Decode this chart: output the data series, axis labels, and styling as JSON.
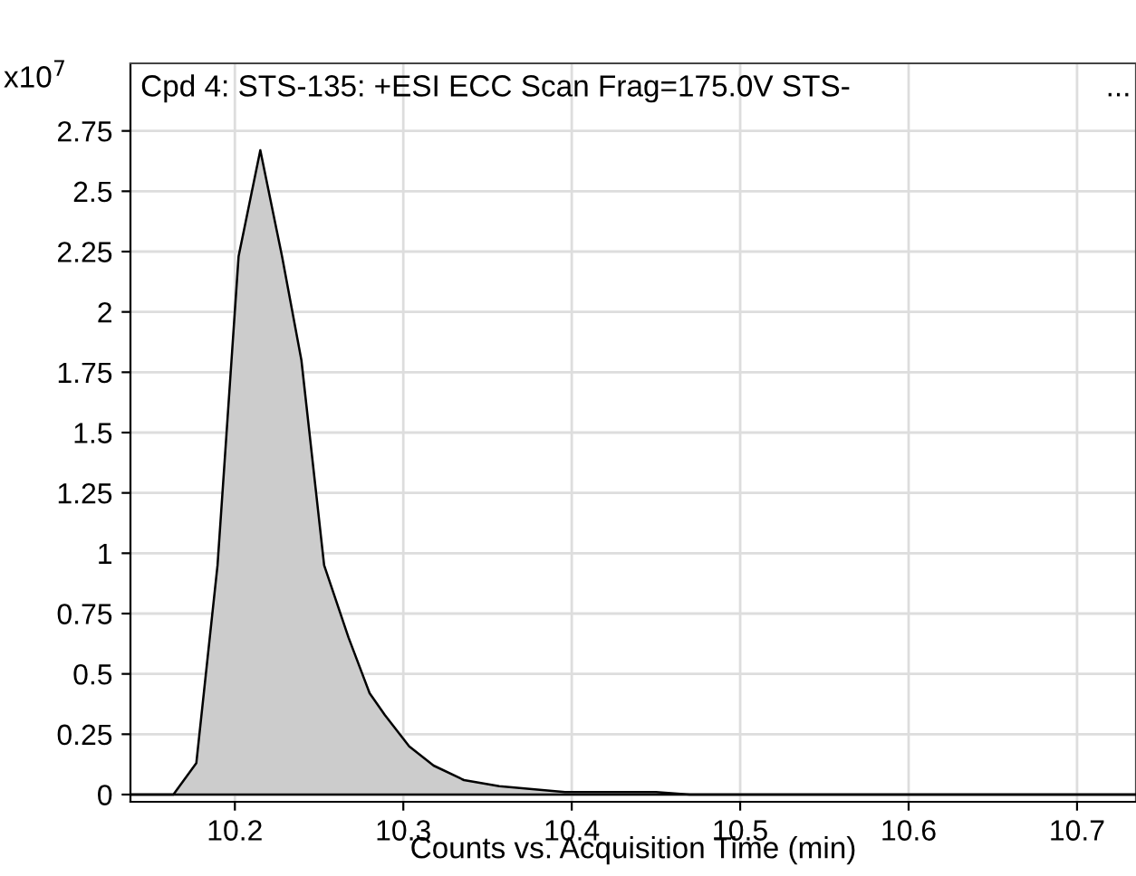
{
  "chart_data": {
    "type": "area",
    "title": "Cpd 4: STS-135: +ESI ECC Scan Frag=175.0V STS-",
    "xlabel": "Counts vs. Acquisition Time (min)",
    "annotations": [
      "x10$^{7}$",
      "..."
    ],
    "x": [
      10.138,
      10.1635,
      10.1771,
      10.1897,
      10.2022,
      10.2151,
      10.228,
      10.2395,
      10.253,
      10.2675,
      10.28,
      10.289,
      10.3035,
      10.318,
      10.336,
      10.357,
      10.396,
      10.45,
      10.47,
      10.735
    ],
    "series": [
      {
        "color": "#cccccc",
        "values": [
          0,
          0,
          0.13,
          0.95,
          2.23,
          2.67,
          2.23,
          1.8,
          0.95,
          0.65,
          0.42,
          0.33,
          0.2,
          0.12,
          0.06,
          0.035,
          0.01,
          0.01,
          0,
          0
        ]
      }
    ],
    "xlim": [
      10.138,
      10.735
    ],
    "xticks": [
      10.2,
      10.3,
      10.4,
      10.5,
      10.6,
      10.7
    ],
    "ylim": [
      -0.03,
      3.03
    ],
    "yticks": [
      0,
      0.25,
      0.5,
      0.75,
      1,
      1.25,
      1.5,
      1.75,
      2,
      2.25,
      2.5,
      2.75
    ],
    "grid": true,
    "legend": false
  }
}
